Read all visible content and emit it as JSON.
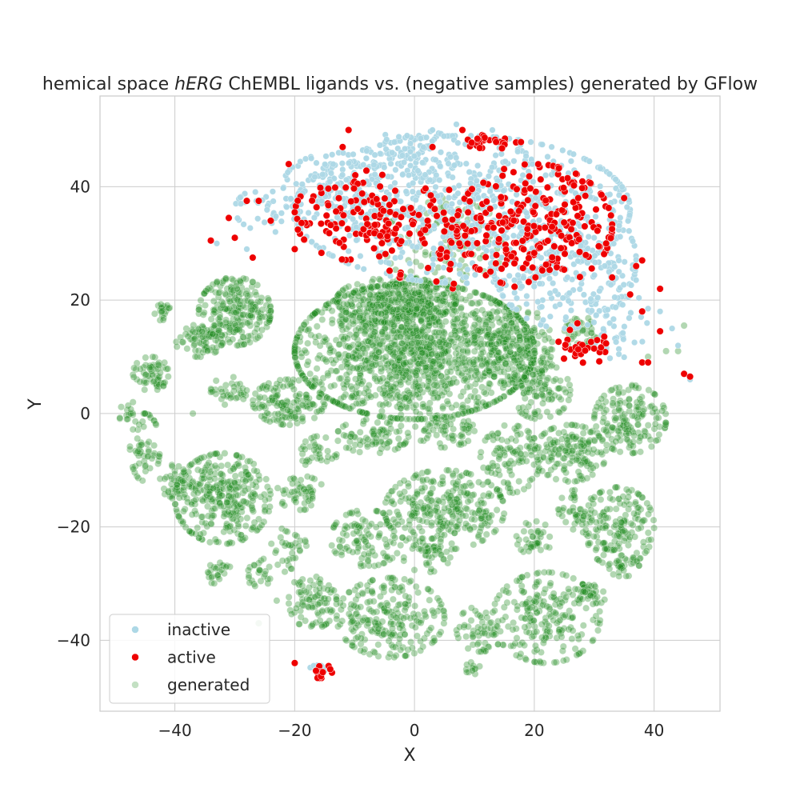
{
  "chart_data": {
    "type": "scatter",
    "title_parts": [
      {
        "text": "hemical space ",
        "italic": false
      },
      {
        "text": "hERG",
        "italic": true
      },
      {
        "text": " ChEMBL ligands vs. (negative samples) generated by GFlow",
        "italic": false
      }
    ],
    "xlabel": "X",
    "ylabel": "Y",
    "xlim": [
      -52.5,
      51
    ],
    "ylim": [
      -52.5,
      56
    ],
    "xticks": [
      -40,
      -20,
      0,
      20,
      40
    ],
    "yticks": [
      -40,
      -20,
      0,
      20,
      40
    ],
    "xtick_labels": [
      "−40",
      "−20",
      "0",
      "20",
      "40"
    ],
    "ytick_labels": [
      "−40",
      "−20",
      "0",
      "20",
      "40"
    ],
    "grid": true,
    "legend_position": "lower-left",
    "series": [
      {
        "name": "inactive",
        "color": "#add8e6",
        "regions": [
          {
            "cx": 8,
            "cy": 36,
            "rx": 28,
            "ry": 13,
            "n": 700
          },
          {
            "cx": -13,
            "cy": 40,
            "rx": 9,
            "ry": 6,
            "n": 140
          },
          {
            "cx": 25,
            "cy": 27,
            "rx": 12,
            "ry": 12,
            "n": 260
          },
          {
            "cx": 34,
            "cy": 18,
            "rx": 5,
            "ry": 9,
            "n": 60
          },
          {
            "cx": 0,
            "cy": 46,
            "rx": 8,
            "ry": 4,
            "n": 80
          },
          {
            "cx": -24,
            "cy": 36,
            "rx": 6,
            "ry": 4,
            "n": 40
          },
          {
            "cx": -16,
            "cy": -45,
            "rx": 1.6,
            "ry": 0.6,
            "n": 10
          }
        ],
        "points": [
          [
            44,
            12
          ],
          [
            46,
            6
          ],
          [
            43,
            15
          ],
          [
            -28,
            29
          ],
          [
            -33,
            30
          ],
          [
            38,
            27
          ],
          [
            41,
            18
          ],
          [
            -29,
            37
          ],
          [
            13,
            50
          ],
          [
            3,
            50
          ],
          [
            7,
            51
          ]
        ]
      },
      {
        "name": "active",
        "color": "#ee0000",
        "regions": [
          {
            "cx": 20,
            "cy": 33,
            "rx": 13,
            "ry": 11,
            "n": 240
          },
          {
            "cx": -10,
            "cy": 35,
            "rx": 10,
            "ry": 8,
            "n": 110
          },
          {
            "cx": 5,
            "cy": 31,
            "rx": 12,
            "ry": 9,
            "n": 80
          },
          {
            "cx": 13,
            "cy": 48,
            "rx": 5,
            "ry": 1.3,
            "n": 30
          },
          {
            "cx": 28,
            "cy": 12,
            "rx": 4,
            "ry": 4,
            "n": 30
          },
          {
            "cx": -15.5,
            "cy": -45.5,
            "rx": 2,
            "ry": 1.2,
            "n": 14
          }
        ],
        "points": [
          [
            -34,
            30.5
          ],
          [
            -31,
            34.5
          ],
          [
            -28,
            37.5
          ],
          [
            -27,
            27.5
          ],
          [
            -20,
            29
          ],
          [
            -20,
            35.5
          ],
          [
            -11,
            50
          ],
          [
            -12,
            47
          ],
          [
            8,
            50
          ],
          [
            3,
            47
          ],
          [
            38,
            9
          ],
          [
            39,
            9
          ],
          [
            45,
            7
          ],
          [
            46,
            6.5
          ],
          [
            41,
            14.5
          ],
          [
            41,
            22
          ],
          [
            37,
            26
          ],
          [
            38,
            27
          ],
          [
            35,
            38
          ],
          [
            32,
            30
          ],
          [
            33,
            24
          ],
          [
            36,
            21
          ],
          [
            -26,
            37.5
          ],
          [
            -21,
            44
          ],
          [
            -24,
            34
          ],
          [
            -30,
            31
          ],
          [
            -20,
            -44
          ],
          [
            38,
            18
          ]
        ]
      },
      {
        "name": "generated",
        "color": "#228b22",
        "legend_color": "#c3e0c3",
        "regions": [
          {
            "cx": 0,
            "cy": 11,
            "rx": 20,
            "ry": 12,
            "n": 1500
          },
          {
            "cx": -3,
            "cy": 20,
            "rx": 10,
            "ry": 4,
            "n": 250
          },
          {
            "cx": 17,
            "cy": 12,
            "rx": 6,
            "ry": 7,
            "n": 180
          },
          {
            "cx": -30,
            "cy": 18,
            "rx": 6,
            "ry": 6,
            "n": 240
          },
          {
            "cx": -36,
            "cy": 13,
            "rx": 4,
            "ry": 3,
            "n": 70
          },
          {
            "cx": -44,
            "cy": 7,
            "rx": 3,
            "ry": 3,
            "n": 60
          },
          {
            "cx": -42,
            "cy": 17.5,
            "rx": 1.5,
            "ry": 1.8,
            "n": 20
          },
          {
            "cx": -31,
            "cy": 4,
            "rx": 3,
            "ry": 2.5,
            "n": 35
          },
          {
            "cx": -21,
            "cy": 2,
            "rx": 6,
            "ry": 4,
            "n": 140
          },
          {
            "cx": -7,
            "cy": -4,
            "rx": 6,
            "ry": 3,
            "n": 80
          },
          {
            "cx": 5,
            "cy": -3,
            "rx": 5,
            "ry": 3,
            "n": 60
          },
          {
            "cx": -16,
            "cy": -7,
            "rx": 3,
            "ry": 3,
            "n": 35
          },
          {
            "cx": -32,
            "cy": -15,
            "rx": 8,
            "ry": 8,
            "n": 330
          },
          {
            "cx": -40,
            "cy": -12,
            "rx": 2.5,
            "ry": 3,
            "n": 40
          },
          {
            "cx": -45,
            "cy": -6,
            "rx": 2.5,
            "ry": 6,
            "n": 60
          },
          {
            "cx": -48,
            "cy": 0,
            "rx": 1.5,
            "ry": 1.5,
            "n": 12
          },
          {
            "cx": -19,
            "cy": -14,
            "rx": 4,
            "ry": 3,
            "n": 50
          },
          {
            "cx": 5,
            "cy": -17,
            "rx": 10,
            "ry": 7,
            "n": 300
          },
          {
            "cx": 16,
            "cy": -8,
            "rx": 5,
            "ry": 6,
            "n": 110
          },
          {
            "cx": -8,
            "cy": -22,
            "rx": 6,
            "ry": 5,
            "n": 110
          },
          {
            "cx": -4,
            "cy": -36,
            "rx": 9,
            "ry": 7,
            "n": 240
          },
          {
            "cx": -17,
            "cy": -33,
            "rx": 4,
            "ry": 5,
            "n": 90
          },
          {
            "cx": -21,
            "cy": -24,
            "rx": 3,
            "ry": 4,
            "n": 35
          },
          {
            "cx": -33,
            "cy": -28,
            "rx": 2.5,
            "ry": 2,
            "n": 25
          },
          {
            "cx": -26,
            "cy": -28,
            "rx": 2.5,
            "ry": 2.5,
            "n": 25
          },
          {
            "cx": 2,
            "cy": -25,
            "rx": 4,
            "ry": 3,
            "n": 45
          },
          {
            "cx": 22,
            "cy": -36,
            "rx": 9,
            "ry": 8,
            "n": 220
          },
          {
            "cx": 11,
            "cy": -38,
            "rx": 4,
            "ry": 4,
            "n": 60
          },
          {
            "cx": 10,
            "cy": -45,
            "rx": 1.5,
            "ry": 1.3,
            "n": 12
          },
          {
            "cx": 20,
            "cy": -22,
            "rx": 3,
            "ry": 3,
            "n": 40
          },
          {
            "cx": 27,
            "cy": -17,
            "rx": 3,
            "ry": 3.5,
            "n": 40
          },
          {
            "cx": 29,
            "cy": -32,
            "rx": 3,
            "ry": 2,
            "n": 30
          },
          {
            "cx": 34,
            "cy": -20,
            "rx": 6,
            "ry": 7,
            "n": 170
          },
          {
            "cx": 35,
            "cy": -27,
            "rx": 2.5,
            "ry": 2,
            "n": 30
          },
          {
            "cx": 26,
            "cy": -7,
            "rx": 6,
            "ry": 5,
            "n": 150
          },
          {
            "cx": 21,
            "cy": 4,
            "rx": 5,
            "ry": 5,
            "n": 110
          },
          {
            "cx": 36,
            "cy": -1,
            "rx": 6,
            "ry": 6,
            "n": 170
          },
          {
            "cx": 28,
            "cy": 14,
            "rx": 3,
            "ry": 3,
            "n": 40
          },
          {
            "cx": 5,
            "cy": 30,
            "rx": 10,
            "ry": 8,
            "n": 120
          }
        ],
        "points": [
          [
            44,
            11
          ],
          [
            45,
            15.5
          ],
          [
            42,
            11
          ],
          [
            39,
            10
          ],
          [
            -48,
            -1
          ],
          [
            -47,
            2
          ],
          [
            -37,
            0
          ],
          [
            -26,
            -37
          ],
          [
            -23,
            -33
          ]
        ]
      }
    ]
  }
}
